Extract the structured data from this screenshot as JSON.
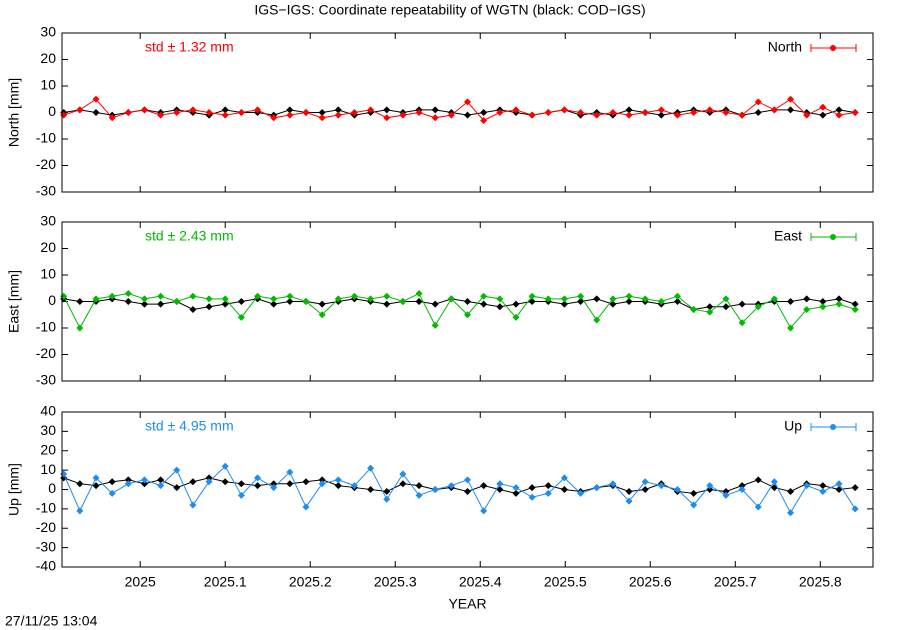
{
  "title": "IGS−IGS: Coordinate repeatability of WGTN (black: COD−IGS)",
  "timestamp": "27/11/25 13:04",
  "chart_data": [
    {
      "type": "line",
      "ylabel": "North [mm]",
      "annotation": "std ± 1.32 mm",
      "xlim": [
        2024.908,
        2025.862
      ],
      "ylim": [
        -30,
        30
      ],
      "yticks": [
        -30,
        -20,
        -10,
        0,
        10,
        20,
        30
      ],
      "x": [
        2024.91,
        2024.929,
        2024.948,
        2024.967,
        2024.986,
        2025.005,
        2025.024,
        2025.043,
        2025.062,
        2025.081,
        2025.1,
        2025.119,
        2025.138,
        2025.157,
        2025.176,
        2025.195,
        2025.214,
        2025.233,
        2025.252,
        2025.271,
        2025.29,
        2025.309,
        2025.328,
        2025.347,
        2025.366,
        2025.385,
        2025.404,
        2025.423,
        2025.442,
        2025.461,
        2025.48,
        2025.499,
        2025.518,
        2025.537,
        2025.556,
        2025.575,
        2025.594,
        2025.613,
        2025.632,
        2025.651,
        2025.67,
        2025.689,
        2025.708,
        2025.727,
        2025.746,
        2025.765,
        2025.784,
        2025.803,
        2025.822,
        2025.841
      ],
      "series": [
        {
          "color": "#000000",
          "values": [
            0,
            1,
            0,
            -1,
            0,
            1,
            0,
            1,
            0,
            -1,
            1,
            0,
            0,
            -1,
            1,
            0,
            0,
            1,
            -1,
            0,
            1,
            0,
            1,
            1,
            0,
            -1,
            0,
            1,
            0,
            -1,
            0,
            1,
            -1,
            0,
            -1,
            1,
            0,
            -1,
            0,
            1,
            0,
            1,
            -1,
            0,
            1,
            1,
            0,
            -1,
            1,
            0
          ]
        },
        {
          "name": "North",
          "color": "#ff0000",
          "values": [
            -1,
            1,
            5,
            -2,
            0,
            1,
            -1,
            0,
            1,
            0,
            -1,
            0,
            1,
            -2,
            -1,
            0,
            -2,
            -1,
            0,
            1,
            -2,
            -1,
            0,
            -2,
            -1,
            4,
            -3,
            0,
            1,
            -1,
            0,
            1,
            0,
            -1,
            0,
            -1,
            0,
            1,
            -1,
            0,
            1,
            0,
            -1,
            4,
            1,
            5,
            -1,
            2,
            -1,
            0
          ]
        }
      ]
    },
    {
      "type": "line",
      "ylabel": "East [mm]",
      "annotation": "std ± 2.43 mm",
      "xlim": [
        2024.908,
        2025.862
      ],
      "ylim": [
        -30,
        30
      ],
      "yticks": [
        -30,
        -20,
        -10,
        0,
        10,
        20,
        30
      ],
      "x": [
        2024.91,
        2024.929,
        2024.948,
        2024.967,
        2024.986,
        2025.005,
        2025.024,
        2025.043,
        2025.062,
        2025.081,
        2025.1,
        2025.119,
        2025.138,
        2025.157,
        2025.176,
        2025.195,
        2025.214,
        2025.233,
        2025.252,
        2025.271,
        2025.29,
        2025.309,
        2025.328,
        2025.347,
        2025.366,
        2025.385,
        2025.404,
        2025.423,
        2025.442,
        2025.461,
        2025.48,
        2025.499,
        2025.518,
        2025.537,
        2025.556,
        2025.575,
        2025.594,
        2025.613,
        2025.632,
        2025.651,
        2025.67,
        2025.689,
        2025.708,
        2025.727,
        2025.746,
        2025.765,
        2025.784,
        2025.803,
        2025.822,
        2025.841
      ],
      "series": [
        {
          "color": "#000000",
          "values": [
            1,
            0,
            0,
            1,
            0,
            -1,
            -1,
            0,
            -3,
            -2,
            -1,
            0,
            1,
            -1,
            0,
            0,
            -1,
            0,
            1,
            0,
            -1,
            0,
            0,
            -1,
            1,
            0,
            -1,
            -2,
            -1,
            0,
            0,
            -1,
            0,
            1,
            -1,
            0,
            0,
            -1,
            0,
            -3,
            -2,
            -2,
            -1,
            -1,
            0,
            0,
            1,
            0,
            1,
            -1
          ]
        },
        {
          "name": "East",
          "color": "#00bb00",
          "values": [
            2,
            -10,
            1,
            2,
            3,
            1,
            2,
            0,
            2,
            1,
            1,
            -6,
            2,
            1,
            2,
            0,
            -5,
            1,
            2,
            1,
            2,
            0,
            3,
            -9,
            1,
            -5,
            2,
            1,
            -6,
            2,
            1,
            1,
            2,
            -7,
            1,
            2,
            1,
            0,
            2,
            -3,
            -4,
            1,
            -8,
            -2,
            1,
            -10,
            -3,
            -2,
            -1,
            -3
          ]
        }
      ]
    },
    {
      "type": "line",
      "ylabel": "Up [mm]",
      "annotation": "std ± 4.95 mm",
      "xlabel": "YEAR",
      "xlim": [
        2024.908,
        2025.862
      ],
      "xticks": [
        2025,
        2025.1,
        2025.2,
        2025.3,
        2025.4,
        2025.5,
        2025.6,
        2025.7,
        2025.8
      ],
      "ylim": [
        -40,
        40
      ],
      "yticks": [
        -40,
        -30,
        -20,
        -10,
        0,
        10,
        20,
        30,
        40
      ],
      "x": [
        2024.91,
        2024.929,
        2024.948,
        2024.967,
        2024.986,
        2025.005,
        2025.024,
        2025.043,
        2025.062,
        2025.081,
        2025.1,
        2025.119,
        2025.138,
        2025.157,
        2025.176,
        2025.195,
        2025.214,
        2025.233,
        2025.252,
        2025.271,
        2025.29,
        2025.309,
        2025.328,
        2025.347,
        2025.366,
        2025.385,
        2025.404,
        2025.423,
        2025.442,
        2025.461,
        2025.48,
        2025.499,
        2025.518,
        2025.537,
        2025.556,
        2025.575,
        2025.594,
        2025.613,
        2025.632,
        2025.651,
        2025.67,
        2025.689,
        2025.708,
        2025.727,
        2025.746,
        2025.765,
        2025.784,
        2025.803,
        2025.822,
        2025.841
      ],
      "series": [
        {
          "color": "#000000",
          "values": [
            6,
            3,
            2,
            4,
            5,
            3,
            5,
            1,
            4,
            6,
            4,
            3,
            2,
            3,
            3,
            4,
            5,
            2,
            1,
            0,
            -1,
            3,
            2,
            0,
            1,
            -1,
            2,
            0,
            -2,
            1,
            2,
            0,
            -1,
            1,
            2,
            -1,
            0,
            3,
            -1,
            -2,
            0,
            -1,
            2,
            5,
            1,
            -1,
            3,
            2,
            0,
            1
          ]
        },
        {
          "name": "Up",
          "color": "#1e8cf0",
          "values": [
            8,
            -11,
            6,
            -2,
            3,
            5,
            2,
            10,
            -8,
            4,
            12,
            -3,
            6,
            1,
            9,
            -9,
            3,
            5,
            2,
            11,
            -5,
            8,
            -3,
            0,
            2,
            5,
            -11,
            3,
            1,
            -4,
            -2,
            6,
            -2,
            1,
            3,
            -6,
            4,
            2,
            0,
            -8,
            2,
            -3,
            0,
            -9,
            4,
            -12,
            2,
            -1,
            3,
            -10
          ]
        }
      ]
    }
  ]
}
